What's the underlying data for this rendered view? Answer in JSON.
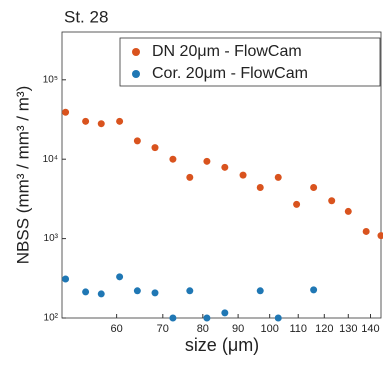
{
  "chart_data": {
    "type": "scatter",
    "title": "St. 28",
    "x_label": "size (μm)",
    "y_label": "NBSS (mm³ / mm³ / m³)",
    "log_x": true,
    "log_y": true,
    "legend": "top-right",
    "xlim": [
      50,
      145
    ],
    "xticks": [
      60,
      70,
      80,
      90,
      100,
      110,
      120,
      130,
      140
    ],
    "ylim": [
      100,
      400000
    ],
    "yticks": [
      {
        "value": 100,
        "label": "10²"
      },
      {
        "value": 1000,
        "label": "10³"
      },
      {
        "value": 10000,
        "label": "10⁴"
      },
      {
        "value": 100000,
        "label": "10⁵"
      }
    ],
    "series": [
      {
        "name": "DN 20μm - FlowCam",
        "color": "#d9531e",
        "x": [
          50.6,
          54.1,
          57,
          60.6,
          64.3,
          68.2,
          72.4,
          76.6,
          81.1,
          86.1,
          91.5,
          96.9,
          102.9,
          109.4,
          115.8,
          123,
          130,
          138,
          145
        ],
        "values": [
          39000,
          30000,
          28000,
          30000,
          17000,
          14000,
          10000,
          5900,
          9400,
          7900,
          6300,
          4400,
          5900,
          2700,
          4400,
          3000,
          2200,
          1230,
          1090
        ]
      },
      {
        "name": "Cor. 20μm - FlowCam",
        "color": "#1f77b4",
        "x": [
          50.6,
          54.1,
          57,
          60.6,
          64.3,
          68.2,
          72.4,
          76.6,
          81.1,
          86.1,
          96.9,
          102.9,
          115.8
        ],
        "values": [
          310,
          213,
          201,
          330,
          220,
          207,
          100,
          220,
          100,
          116,
          220,
          100,
          226
        ]
      }
    ]
  }
}
